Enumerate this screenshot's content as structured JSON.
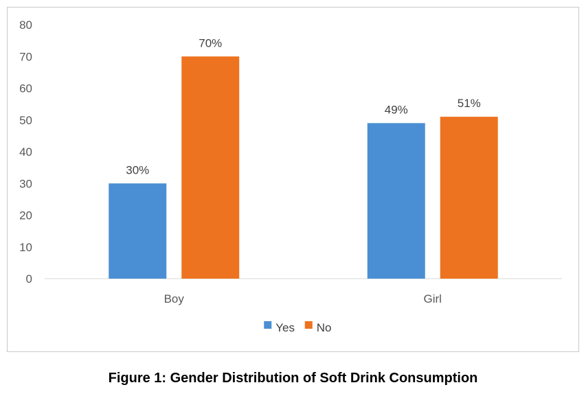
{
  "chart_data": {
    "type": "bar",
    "categories": [
      "Boy",
      "Girl"
    ],
    "series": [
      {
        "name": "Yes",
        "values": [
          30,
          49
        ],
        "labels": [
          "30%",
          "49%"
        ],
        "color": "#4a8fd3"
      },
      {
        "name": "No",
        "values": [
          70,
          51
        ],
        "labels": [
          "70%",
          "51%"
        ],
        "color": "#ee7320"
      }
    ],
    "ylim": [
      0,
      80
    ],
    "yticks": [
      0,
      10,
      20,
      30,
      40,
      50,
      60,
      70,
      80
    ],
    "grid": false,
    "legend_position": "bottom",
    "axis_color": "#d9d9d9"
  },
  "caption": "Figure 1: Gender Distribution of Soft Drink Consumption"
}
